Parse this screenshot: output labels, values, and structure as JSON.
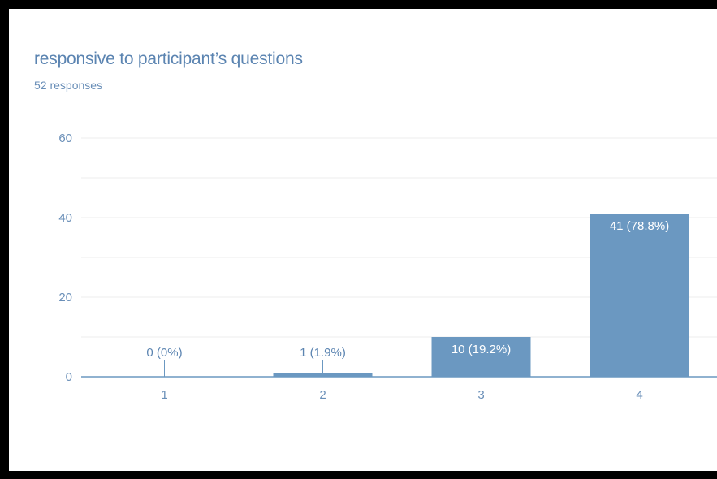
{
  "question": {
    "title": "responsive to participant’s questions",
    "responses": "52 responses"
  },
  "colors": {
    "bar": "#6b98c1",
    "axis_text": "#6a8fb8",
    "grid": "#ececec",
    "baseline": "#6b98c1",
    "label_inside": "#ffffff",
    "label_outside": "#5b84b1"
  },
  "chart_data": {
    "type": "bar",
    "title": "responsive to participant’s questions",
    "xlabel": "",
    "ylabel": "",
    "categories": [
      "1",
      "2",
      "3",
      "4"
    ],
    "values": [
      0,
      1,
      10,
      41
    ],
    "labels": [
      "0 (0%)",
      "1 (1.9%)",
      "10 (19.2%)",
      "41 (78.8%)"
    ],
    "y_ticks": [
      0,
      20,
      40,
      60
    ],
    "ylim": [
      0,
      60
    ],
    "grid": true,
    "legend": "none"
  }
}
